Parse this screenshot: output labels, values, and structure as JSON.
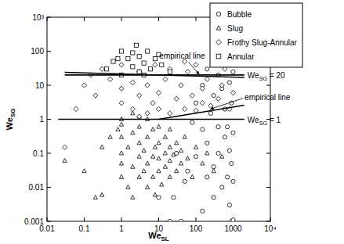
{
  "chart_data": {
    "type": "scatter",
    "log": true,
    "grid": false,
    "legend": "upper right",
    "x_label": [
      "We",
      "SL"
    ],
    "y_label": [
      "We",
      "SG"
    ],
    "xlim": [
      0.01,
      10000
    ],
    "ylim": [
      0.001,
      1000
    ],
    "xticks": [
      0.01,
      0.1,
      1,
      10,
      100,
      {
        "value": 1000,
        "label": "1000"
      },
      {
        "value": 10000,
        "label": "10⁴"
      }
    ],
    "yticks": [
      0.001,
      0.01,
      0.1,
      1,
      10,
      100,
      {
        "value": 1000,
        "label": "10³"
      }
    ],
    "series": [
      {
        "name": "Bubble",
        "marker": "circle",
        "color": "#000000",
        "x": [
          20,
          40,
          900,
          1000,
          150,
          300,
          800,
          500,
          200,
          700,
          1000,
          60,
          300,
          900,
          100,
          400,
          800,
          30,
          200,
          600,
          1000,
          150,
          400,
          80,
          250,
          600,
          900,
          100,
          300,
          500,
          150,
          800,
          400,
          200,
          1000,
          600,
          50,
          25,
          10,
          700
        ],
        "values": [
          0.001,
          0.001,
          0.001,
          0.0011,
          0.002,
          0.005,
          0.003,
          0.01,
          0.02,
          0.02,
          0.015,
          0.03,
          0.04,
          0.05,
          0.08,
          0.1,
          0.12,
          0.1,
          0.2,
          0.3,
          0.4,
          0.5,
          0.6,
          0.8,
          1.5,
          2,
          3,
          3,
          5,
          8,
          10,
          12,
          20,
          30,
          25,
          50,
          0.015,
          0.005,
          0.005,
          0.6
        ]
      },
      {
        "name": "Slug",
        "marker": "triangle",
        "color": "#000000",
        "x": [
          0.2,
          0.3,
          0.1,
          0.3,
          0.5,
          0.8,
          1,
          1,
          1,
          1,
          1,
          1.5,
          1.5,
          2,
          2,
          2,
          3,
          3,
          3,
          3,
          4,
          4,
          5,
          5,
          5,
          5,
          7,
          7,
          7,
          8,
          10,
          10,
          10,
          10,
          12,
          15,
          15,
          15,
          20,
          20,
          20,
          20,
          25,
          30,
          30,
          40,
          40,
          50,
          60,
          80,
          100,
          150,
          200,
          300,
          500,
          2,
          8,
          1,
          3,
          0.03
        ],
        "values": [
          0.005,
          0.006,
          0.03,
          0.15,
          0.3,
          0.5,
          0.02,
          0.05,
          0.1,
          0.3,
          0.7,
          0.01,
          0.15,
          0.04,
          0.4,
          1.5,
          0.02,
          0.08,
          0.2,
          0.6,
          0.03,
          0.12,
          0.01,
          0.05,
          0.3,
          1,
          0.02,
          0.08,
          0.5,
          0.15,
          0.03,
          0.07,
          0.2,
          0.6,
          0.012,
          0.04,
          0.1,
          0.3,
          0.02,
          0.06,
          0.15,
          0.5,
          0.09,
          0.03,
          0.2,
          0.05,
          0.12,
          0.3,
          0.07,
          0.02,
          0.15,
          0.05,
          0.1,
          0.03,
          0.08,
          0.005,
          0.006,
          1,
          1.2,
          0.06
        ]
      },
      {
        "name": "Frothy Slug-Annular",
        "marker": "diamond",
        "color": "#000000",
        "x": [
          0.03,
          0.06,
          0.1,
          0.15,
          0.2,
          0.3,
          0.5,
          1,
          1,
          1,
          2,
          2,
          3,
          3,
          5,
          5,
          7,
          8,
          10,
          10,
          15,
          20,
          20,
          30,
          40,
          50,
          60,
          80,
          100,
          100,
          150,
          200,
          250,
          300,
          400,
          500,
          600,
          800,
          1000,
          50,
          3,
          150
        ],
        "values": [
          0.15,
          2,
          10,
          20,
          5,
          30,
          15,
          3,
          8,
          40,
          2,
          12,
          5,
          25,
          1.5,
          10,
          3,
          40,
          2,
          6,
          15,
          1.5,
          30,
          4,
          10,
          2,
          25,
          5,
          1.8,
          40,
          8,
          15,
          2.5,
          60,
          4,
          10,
          30,
          2,
          6,
          50,
          1.2,
          3
        ]
      },
      {
        "name": "Annular",
        "marker": "square",
        "color": "#000000",
        "x": [
          0.4,
          0.6,
          1,
          1.5,
          2,
          2,
          3,
          3,
          4,
          5,
          6,
          8,
          10,
          1,
          2.5,
          12,
          20,
          0.8,
          4
        ],
        "values": [
          30,
          50,
          20,
          60,
          35,
          90,
          25,
          70,
          45,
          100,
          30,
          60,
          80,
          100,
          150,
          40,
          25,
          60,
          20
        ]
      },
      {
        "type": "line",
        "line_style": "solid",
        "color": "#000000",
        "label": [
          "We",
          "SG",
          " = 20"
        ],
        "x": [
          0.03,
          2000
        ],
        "values": [
          20,
          20
        ]
      },
      {
        "type": "line",
        "line_style": "solid",
        "color": "#000000",
        "label": [
          "We",
          "SG",
          " = 1"
        ],
        "x": [
          0.02,
          2000
        ],
        "values": [
          1,
          1
        ]
      },
      {
        "type": "line",
        "line_style": "solid",
        "color": "#000000",
        "label": "empirical line",
        "x": [
          0.03,
          2000
        ],
        "values": [
          24,
          17
        ]
      },
      {
        "type": "line",
        "line_style": "solid",
        "color": "#000000",
        "label": "empirical line",
        "x": [
          10,
          2000
        ],
        "values": [
          1,
          2.6
        ]
      }
    ]
  }
}
